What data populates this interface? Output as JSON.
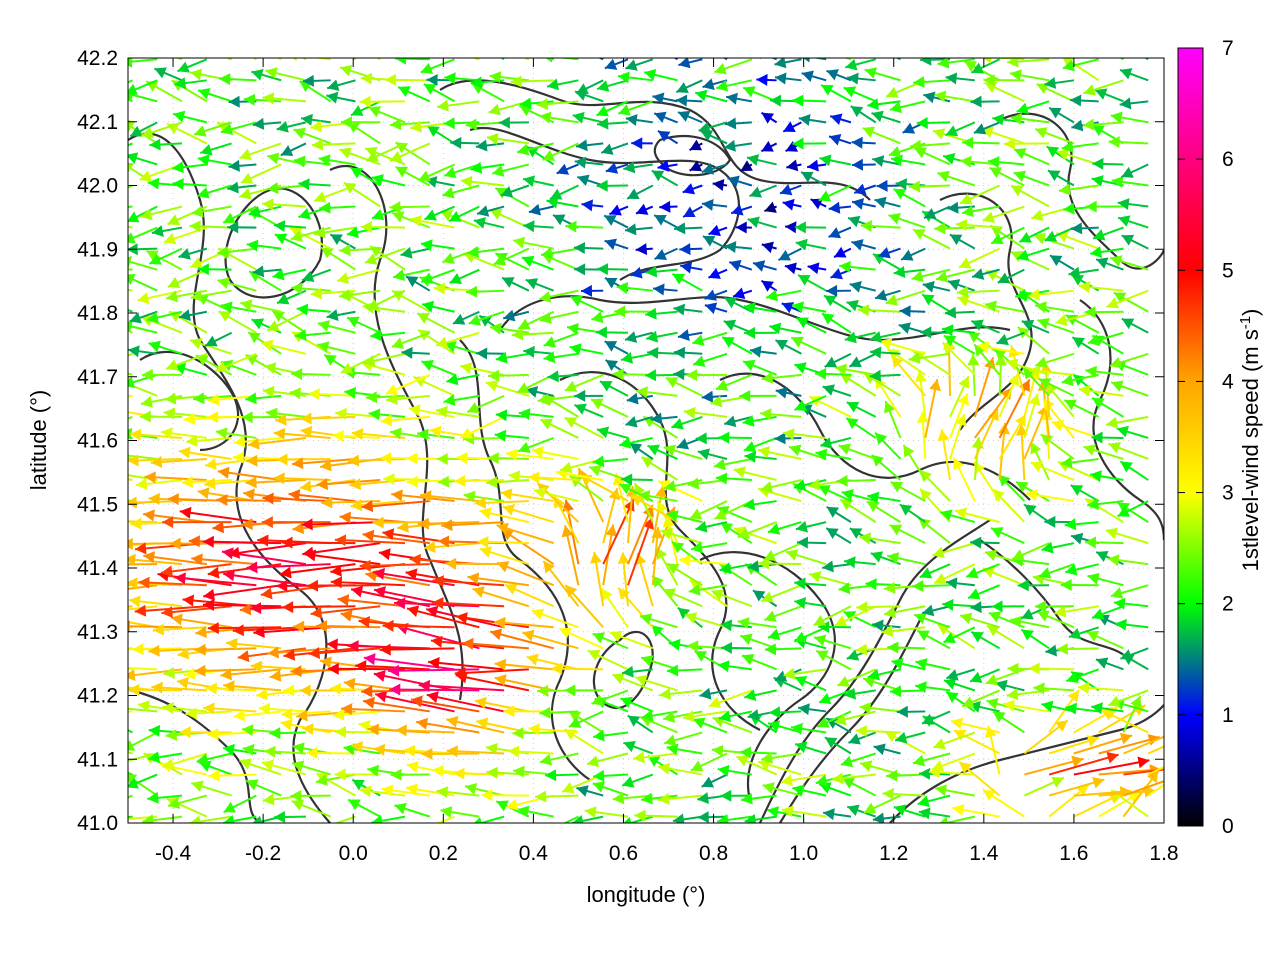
{
  "chart_data": {
    "type": "vector-field",
    "title": "",
    "xlabel": "longitude (°)",
    "ylabel": "latitude (°)",
    "xlim": [
      -0.5,
      1.8
    ],
    "ylim": [
      41.0,
      42.2
    ],
    "xticks": [
      -0.4,
      -0.2,
      0.0,
      0.2,
      0.4,
      0.6,
      0.8,
      1.0,
      1.2,
      1.4,
      1.6,
      1.8
    ],
    "yticks": [
      41.0,
      41.1,
      41.2,
      41.3,
      41.4,
      41.5,
      41.6,
      41.7,
      41.8,
      41.9,
      42.0,
      42.1,
      42.2
    ],
    "x_tick_labels": [
      "-0.4",
      "-0.2",
      "0.0",
      "0.2",
      "0.4",
      "0.6",
      "0.8",
      "1.0",
      "1.2",
      "1.4",
      "1.6",
      "1.8"
    ],
    "y_tick_labels": [
      "41.0",
      "41.1",
      "41.2",
      "41.3",
      "41.4",
      "41.5",
      "41.6",
      "41.7",
      "41.8",
      "41.9",
      "42.0",
      "42.1",
      "42.2"
    ],
    "grid": true,
    "colorbar": {
      "label": "1stlevel-wind speed (m s",
      "label_superscript": "-1",
      "label_close": ")",
      "range": [
        0,
        7
      ],
      "ticks": [
        0,
        1,
        2,
        3,
        4,
        5,
        6,
        7
      ],
      "tick_labels": [
        "0",
        "1",
        "2",
        "3",
        "4",
        "5",
        "6",
        "7"
      ],
      "colors": [
        "#000000",
        "#0000ff",
        "#00ff00",
        "#ffff00",
        "#ffa500",
        "#ff0000",
        "#ff00ff"
      ]
    },
    "wind_regions": [
      {
        "lon": [
          -0.5,
          0.35
        ],
        "lat": [
          41.2,
          41.6
        ],
        "u": -5.0,
        "v": 0.0,
        "speed": 5.2
      },
      {
        "lon": [
          0.1,
          0.45
        ],
        "lat": [
          41.1,
          41.4
        ],
        "u": -5.5,
        "v": 0.6,
        "speed": 5.8
      },
      {
        "lon": [
          0.45,
          0.75
        ],
        "lat": [
          41.3,
          41.5
        ],
        "u": 1.0,
        "v": 2.5,
        "speed": 4.3
      },
      {
        "lon": [
          1.45,
          1.8
        ],
        "lat": [
          41.0,
          41.15
        ],
        "u": 4.5,
        "v": 0.8,
        "speed": 4.6
      },
      {
        "lon": [
          0.5,
          1.2
        ],
        "lat": [
          41.75,
          42.2
        ],
        "u": -0.6,
        "v": 0.0,
        "speed": 1.0
      },
      {
        "lon": [
          1.2,
          1.6
        ],
        "lat": [
          41.5,
          41.7
        ],
        "u": 1.5,
        "v": 2.5,
        "speed": 3.8
      }
    ]
  }
}
